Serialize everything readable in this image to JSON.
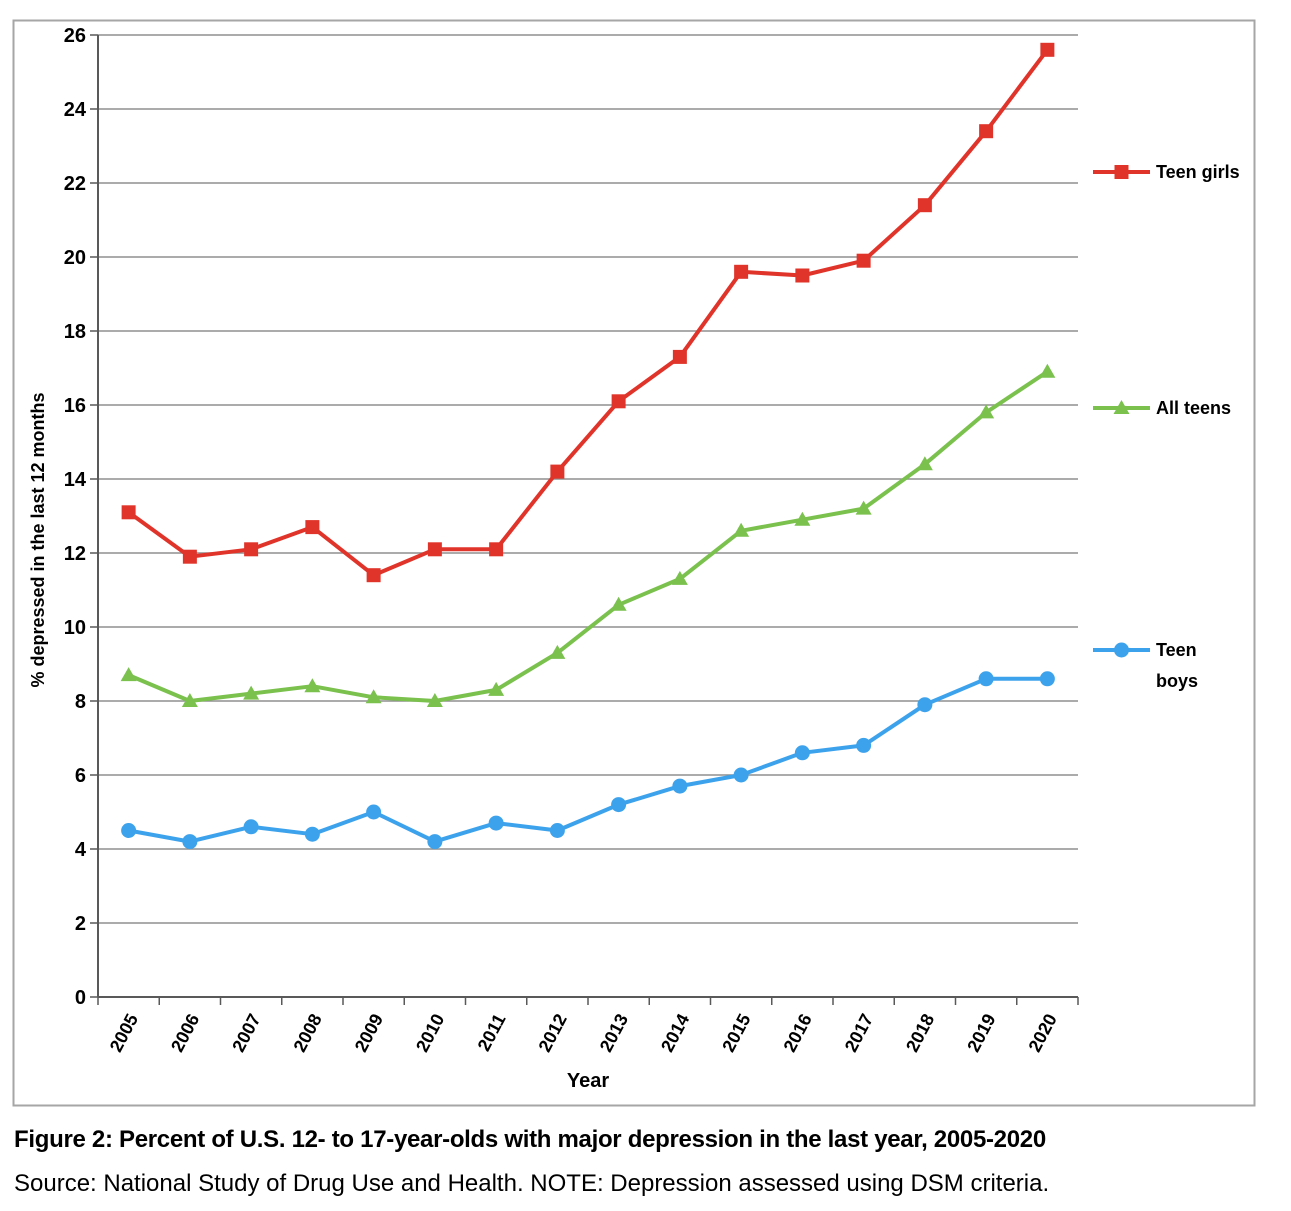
{
  "figure": {
    "caption_title": "Figure 2: Percent of U.S. 12- to 17-year-olds with major depression in the last year, 2005-2020",
    "caption_source": "Source: National Study of Drug Use and Health. NOTE: Depression assessed using DSM criteria."
  },
  "chart_data": {
    "type": "line",
    "title": "",
    "xlabel": "Year",
    "ylabel": "% depressed in the last 12 months",
    "ylim": [
      0,
      26
    ],
    "ytick_step": 2,
    "grid": true,
    "legend_position": "right-outside",
    "categories": [
      "2005",
      "2006",
      "2007",
      "2008",
      "2009",
      "2010",
      "2011",
      "2012",
      "2013",
      "2014",
      "2015",
      "2016",
      "2017",
      "2018",
      "2019",
      "2020"
    ],
    "series": [
      {
        "name": "Teen girls",
        "legend_lines": [
          "Teen girls"
        ],
        "color": "#e0342a",
        "marker": "square",
        "values": [
          13.1,
          11.9,
          12.1,
          12.7,
          11.4,
          12.1,
          12.1,
          14.2,
          16.1,
          17.3,
          19.6,
          19.5,
          19.9,
          21.4,
          23.4,
          25.6
        ]
      },
      {
        "name": "All teens",
        "legend_lines": [
          "All teens"
        ],
        "color": "#7ac14e",
        "marker": "triangle",
        "values": [
          8.7,
          8.0,
          8.2,
          8.4,
          8.1,
          8.0,
          8.3,
          9.3,
          10.6,
          11.3,
          12.6,
          12.9,
          13.2,
          14.4,
          15.8,
          16.9
        ]
      },
      {
        "name": "Teen boys",
        "legend_lines": [
          "Teen",
          "boys"
        ],
        "color": "#3da2ec",
        "marker": "circle",
        "values": [
          4.5,
          4.2,
          4.6,
          4.4,
          5.0,
          4.2,
          4.7,
          4.5,
          5.2,
          5.7,
          6.0,
          6.6,
          6.8,
          7.9,
          8.6,
          8.6
        ]
      }
    ],
    "colors": {
      "gridline": "#8f8f8f",
      "axis": "#595959",
      "border": "#a6a6a6",
      "text": "#000000"
    }
  }
}
